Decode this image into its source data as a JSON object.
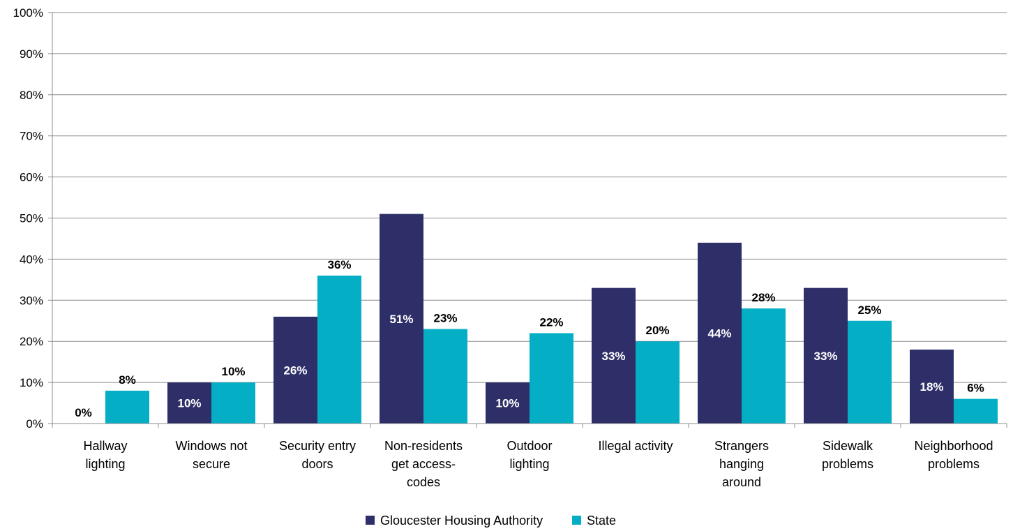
{
  "chart_data": {
    "type": "bar",
    "categories": [
      [
        "Hallway",
        "lighting"
      ],
      [
        "Windows not",
        "secure"
      ],
      [
        "Security entry",
        "doors"
      ],
      [
        "Non-residents",
        "get access-",
        "codes"
      ],
      [
        "Outdoor",
        "lighting"
      ],
      [
        "Illegal activity"
      ],
      [
        "Strangers",
        "hanging",
        "around"
      ],
      [
        "Sidewalk",
        "problems"
      ],
      [
        "Neighborhood",
        "problems"
      ]
    ],
    "series": [
      {
        "name": "Gloucester Housing Authority",
        "color": "#2e2f68",
        "values": [
          0,
          10,
          26,
          51,
          10,
          33,
          44,
          33,
          18
        ],
        "labels": [
          "0%",
          "10%",
          "26%",
          "51%",
          "10%",
          "33%",
          "44%",
          "33%",
          "18%"
        ]
      },
      {
        "name": "State",
        "color": "#04aec4",
        "values": [
          8,
          10,
          36,
          23,
          22,
          20,
          28,
          25,
          6
        ],
        "labels": [
          "8%",
          "10%",
          "36%",
          "23%",
          "22%",
          "20%",
          "28%",
          "25%",
          "6%"
        ]
      }
    ],
    "ylim": [
      0,
      100
    ],
    "yticks": [
      "0%",
      "10%",
      "20%",
      "30%",
      "40%",
      "50%",
      "60%",
      "70%",
      "80%",
      "90%",
      "100%"
    ],
    "grid": true,
    "legend_position": "bottom",
    "title": "",
    "xlabel": "",
    "ylabel": ""
  }
}
